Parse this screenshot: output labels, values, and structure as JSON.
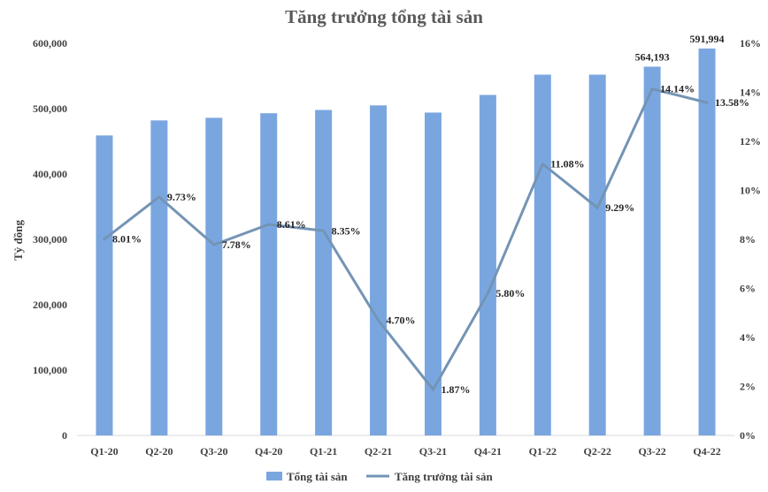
{
  "chart_data": {
    "type": "bar",
    "title": "Tăng trưởng tổng tài sản",
    "ylabel": "Tỷ đồng",
    "categories": [
      "Q1-20",
      "Q2-20",
      "Q3-20",
      "Q4-20",
      "Q1-21",
      "Q2-21",
      "Q3-21",
      "Q4-21",
      "Q1-22",
      "Q2-22",
      "Q3-22",
      "Q4-22"
    ],
    "series": [
      {
        "name": "Tổng tài sản",
        "type": "bar",
        "axis": "left",
        "color": "#7aa6e0",
        "values": [
          459000,
          482000,
          486000,
          493000,
          498000,
          505000,
          494000,
          521000,
          552000,
          552000,
          564193,
          591994
        ],
        "labels": [
          "",
          "",
          "",
          "",
          "",
          "",
          "",
          "",
          "",
          "",
          "564,193",
          "591,994"
        ]
      },
      {
        "name": "Tăng trưởng tài sản",
        "type": "line",
        "axis": "right",
        "color": "#7494b4",
        "values": [
          8.01,
          9.73,
          7.78,
          8.61,
          8.35,
          4.7,
          1.87,
          5.8,
          11.08,
          9.29,
          14.14,
          13.58
        ],
        "labels": [
          "8.01%",
          "9.73%",
          "7.78%",
          "8.61%",
          "8.35%",
          "4.70%",
          "1.87%",
          "5.80%",
          "11.08%",
          "9.29%",
          "14.14%",
          "13.58%"
        ]
      }
    ],
    "ylim_left": [
      0,
      600000
    ],
    "yticks_left": [
      "0",
      "100,000",
      "200,000",
      "300,000",
      "400,000",
      "500,000",
      "600,000"
    ],
    "ylim_right": [
      0,
      16
    ],
    "yticks_right": [
      "0%",
      "2%",
      "4%",
      "6%",
      "8%",
      "10%",
      "12%",
      "14%",
      "16%"
    ],
    "grid": false,
    "legend_position": "bottom"
  }
}
